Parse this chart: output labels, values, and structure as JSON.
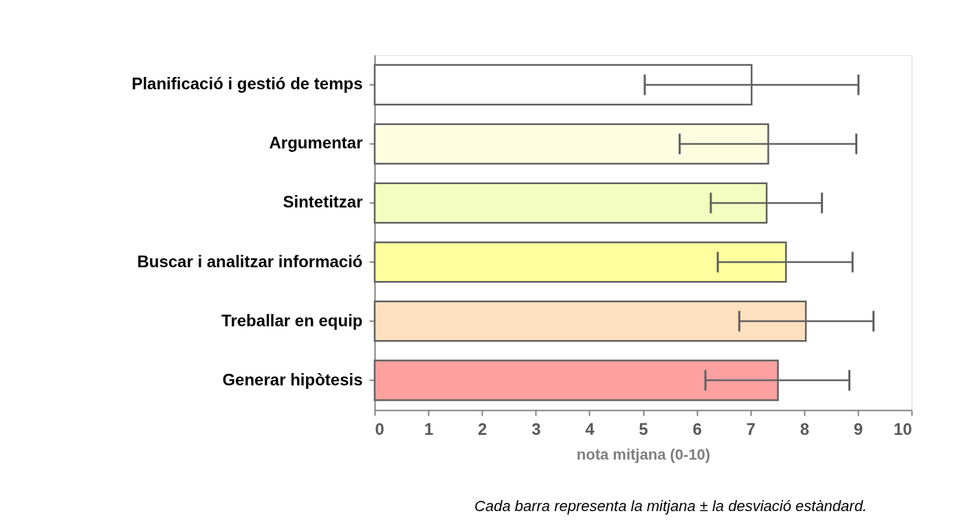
{
  "chart_data": {
    "type": "bar",
    "orientation": "horizontal",
    "categories": [
      "Planificació i gestió de temps",
      "Argumentar",
      "Sintetitzar",
      "Buscar i analitzar informació",
      "Treballar en equip",
      "Generar hipòtesis"
    ],
    "values": [
      7.02,
      7.33,
      7.3,
      7.66,
      8.03,
      7.51
    ],
    "errors": [
      [
        5.03,
        9.01
      ],
      [
        5.68,
        8.97
      ],
      [
        6.26,
        8.33
      ],
      [
        6.39,
        8.9
      ],
      [
        6.79,
        9.29
      ],
      [
        6.16,
        8.84
      ]
    ],
    "colors": [
      "#ffffff",
      "#fefde0",
      "#f2fdbf",
      "#fefe9e",
      "#fde0c0",
      "#fda0a0"
    ],
    "xlabel": "nota mitjana (0-10)",
    "xlim": [
      0,
      10
    ],
    "xticks": [
      0,
      1,
      2,
      3,
      4,
      5,
      6,
      7,
      8,
      9,
      10
    ],
    "grid": false,
    "annotations": [
      "Cada barra representa la mitjana ± la desviació estàndard."
    ]
  }
}
